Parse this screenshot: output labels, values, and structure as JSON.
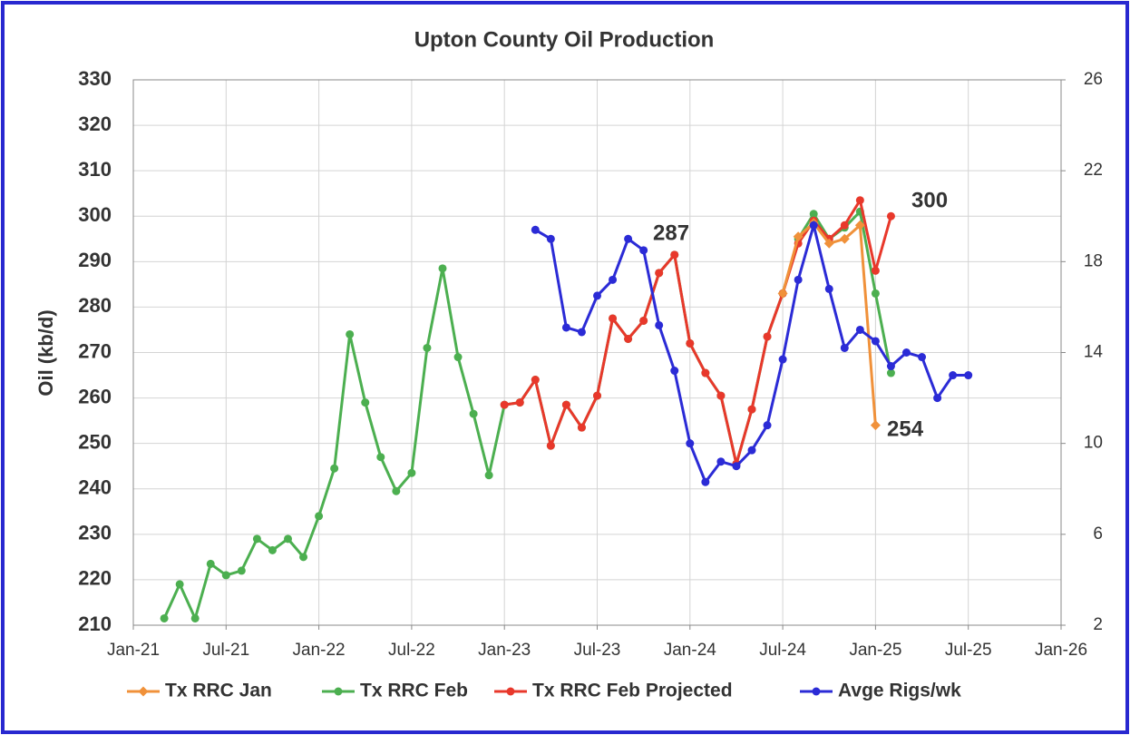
{
  "chart_data": {
    "type": "line",
    "title": "Upton County Oil Production",
    "y_label": "Oil (kb/d)",
    "xlim": [
      "2021-01",
      "2026-01"
    ],
    "xticks": [
      {
        "value": "2021-01",
        "label": "Jan-21"
      },
      {
        "value": "2021-07",
        "label": "Jul-21"
      },
      {
        "value": "2022-01",
        "label": "Jan-22"
      },
      {
        "value": "2022-07",
        "label": "Jul-22"
      },
      {
        "value": "2023-01",
        "label": "Jan-23"
      },
      {
        "value": "2023-07",
        "label": "Jul-23"
      },
      {
        "value": "2024-01",
        "label": "Jan-24"
      },
      {
        "value": "2024-07",
        "label": "Jul-24"
      },
      {
        "value": "2025-01",
        "label": "Jan-25"
      },
      {
        "value": "2025-07",
        "label": "Jul-25"
      },
      {
        "value": "2026-01",
        "label": "Jan-26"
      }
    ],
    "ylim": [
      210,
      330
    ],
    "yticks": [
      210,
      220,
      230,
      240,
      250,
      260,
      270,
      280,
      290,
      300,
      310,
      320,
      330
    ],
    "y2lim": [
      2,
      26
    ],
    "y2ticks": [
      2,
      6,
      10,
      14,
      18,
      22,
      26
    ],
    "grid": true,
    "legend": "bottom",
    "series": [
      {
        "name": "Tx RRC Jan",
        "color": "#f0913a",
        "marker": "diamond",
        "x": [
          "2024-07",
          "2024-08",
          "2024-09",
          "2024-10",
          "2024-11",
          "2024-12",
          "2025-01"
        ],
        "values": [
          283,
          295.5,
          298.5,
          294,
          295,
          298,
          254
        ]
      },
      {
        "name": "Tx RRC Feb",
        "color": "#4caf50",
        "marker": "circle",
        "x": [
          "2021-03",
          "2021-04",
          "2021-05",
          "2021-06",
          "2021-07",
          "2021-08",
          "2021-09",
          "2021-10",
          "2021-11",
          "2021-12",
          "2022-01",
          "2022-02",
          "2022-03",
          "2022-04",
          "2022-05",
          "2022-06",
          "2022-07",
          "2022-08",
          "2022-09",
          "2022-10",
          "2022-11",
          "2022-12",
          "2023-01",
          "2023-02",
          "2023-03",
          "2023-04",
          "2023-05",
          "2023-06",
          "2023-07",
          "2023-08",
          "2023-09",
          "2023-10",
          "2023-11",
          "2023-12",
          "2024-01",
          "2024-02",
          "2024-03",
          "2024-04",
          "2024-05",
          "2024-06",
          "2024-07",
          "2024-08",
          "2024-09",
          "2024-10",
          "2024-11",
          "2024-12",
          "2025-01",
          "2025-02"
        ],
        "values": [
          211.5,
          219,
          211.5,
          223.5,
          221,
          222,
          229,
          226.5,
          229,
          225,
          234,
          244.5,
          274,
          259,
          247,
          239.5,
          243.5,
          271,
          288.5,
          269,
          256.5,
          243,
          258.5,
          259,
          264,
          249.5,
          258.5,
          253.5,
          260.5,
          277.5,
          273,
          277,
          287.5,
          291.5,
          272,
          265.5,
          260.5,
          245.5,
          257.5,
          273.5,
          283,
          295,
          300.5,
          295,
          297.5,
          301,
          283,
          265.5
        ]
      },
      {
        "name": "Tx RRC Feb Projected",
        "color": "#e8382b",
        "marker": "circle",
        "x": [
          "2023-01",
          "2023-02",
          "2023-03",
          "2023-04",
          "2023-05",
          "2023-06",
          "2023-07",
          "2023-08",
          "2023-09",
          "2023-10",
          "2023-11",
          "2023-12",
          "2024-01",
          "2024-02",
          "2024-03",
          "2024-04",
          "2024-05",
          "2024-06",
          "2024-07",
          "2024-08",
          "2024-09",
          "2024-10",
          "2024-11",
          "2024-12",
          "2025-01",
          "2025-02"
        ],
        "values": [
          258.5,
          259,
          264,
          249.5,
          258.5,
          253.5,
          260.5,
          277.5,
          273,
          277,
          287.5,
          291.5,
          272,
          265.5,
          260.5,
          245.5,
          257.5,
          273.5,
          283,
          294,
          299,
          295,
          298,
          303.5,
          288,
          300
        ]
      },
      {
        "name": "Avge Rigs/wk",
        "color": "#2b2bd6",
        "marker": "circle",
        "axis": "y2",
        "x": [
          "2023-03",
          "2023-04",
          "2023-05",
          "2023-06",
          "2023-07",
          "2023-08",
          "2023-09",
          "2023-10",
          "2023-11",
          "2023-12",
          "2024-01",
          "2024-02",
          "2024-03",
          "2024-04",
          "2024-05",
          "2024-06",
          "2024-07",
          "2024-08",
          "2024-09",
          "2024-10",
          "2024-11",
          "2024-12",
          "2025-01",
          "2025-02",
          "2025-03",
          "2025-04",
          "2025-05",
          "2025-06",
          "2025-07"
        ],
        "values": [
          19.4,
          19,
          15.1,
          14.9,
          16.5,
          17.2,
          19,
          18.5,
          15.2,
          13.2,
          10,
          8.3,
          9.2,
          9,
          9.7,
          10.8,
          13.7,
          17.2,
          19.6,
          16.8,
          14.2,
          15,
          14.5,
          13.4,
          14,
          13.8,
          12,
          13,
          13
        ]
      }
    ],
    "annotations": [
      "287",
      "300",
      "254"
    ]
  }
}
